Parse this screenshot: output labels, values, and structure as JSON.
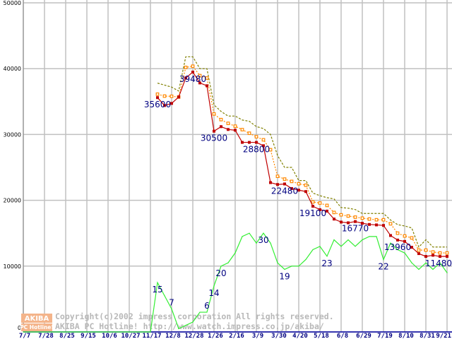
{
  "chart_data": {
    "type": "line",
    "title": "",
    "xlabel": "",
    "ylabel": "",
    "ylim": [
      0,
      50000
    ],
    "yticks": [
      "0",
      "10000",
      "20000",
      "30000",
      "40000",
      "50000"
    ],
    "xticks": [
      "7/7",
      "7/28",
      "8/25",
      "9/15",
      "10/6",
      "10/27",
      "11/17",
      "12/8",
      "12/28",
      "1/26",
      "2/16",
      "3/9",
      "3/30",
      "4/20",
      "5/18",
      "6/8",
      "6/29",
      "7/19",
      "8/10",
      "8/31",
      "9/21"
    ],
    "weeks_total": 61,
    "price_start_week": 19,
    "grid": true,
    "legend": "none",
    "series": [
      {
        "name": "max",
        "style": "dotted",
        "color": "#808000",
        "values": [
          37800,
          37500,
          37200,
          36600,
          41800,
          41800,
          40000,
          40000,
          34500,
          33500,
          32800,
          32800,
          32200,
          32000,
          31200,
          30900,
          30000,
          26800,
          25000,
          25000,
          23000,
          23000,
          21100,
          20700,
          20400,
          20200,
          18900,
          18800,
          18600,
          18000,
          18000,
          18000,
          18000,
          17000,
          16300,
          16100,
          15800,
          12900,
          14000,
          12900,
          12900,
          12900
        ]
      },
      {
        "name": "average",
        "style": "dotted-hollow-square",
        "color": "#ff8800",
        "values": [
          36120,
          35830,
          35800,
          35690,
          40190,
          40370,
          38940,
          38580,
          33120,
          32260,
          31690,
          31260,
          30730,
          30190,
          29650,
          29190,
          27680,
          23650,
          23220,
          22870,
          22510,
          22290,
          19750,
          19580,
          19220,
          18150,
          17790,
          17610,
          17440,
          17290,
          17150,
          17040,
          17040,
          16430,
          15000,
          14580,
          14290,
          12430,
          12430,
          12150,
          12000,
          12000
        ]
      },
      {
        "name": "min",
        "style": "solid-square",
        "color": "#c00000",
        "values": [
          35600,
          34400,
          34720,
          35690,
          38580,
          39480,
          37830,
          37400,
          30500,
          31190,
          30760,
          30650,
          28800,
          28800,
          28800,
          28290,
          22690,
          22400,
          22480,
          21790,
          21540,
          21330,
          19100,
          18580,
          18360,
          17150,
          16690,
          16580,
          16770,
          16510,
          16330,
          16260,
          16180,
          14650,
          13960,
          13750,
          12860,
          11900,
          11470,
          11650,
          11470,
          11480
        ],
        "labels": [
          {
            "i": 19,
            "text": "35600"
          },
          {
            "i": 24,
            "text": "39480"
          },
          {
            "i": 27,
            "text": "30500"
          },
          {
            "i": 33,
            "text": "28800"
          },
          {
            "i": 37,
            "text": "22480"
          },
          {
            "i": 41,
            "text": "19100"
          },
          {
            "i": 47,
            "text": "16770"
          },
          {
            "i": 53,
            "text": "13960"
          },
          {
            "i": 60,
            "text": "11480"
          }
        ]
      },
      {
        "name": "shop count",
        "style": "solid",
        "color": "#33ee33",
        "count_scale": 500,
        "start_week": 0,
        "values": [
          0,
          0,
          0,
          0,
          0,
          0,
          0,
          0,
          0,
          0,
          0,
          0,
          0,
          0,
          0,
          0,
          0,
          0,
          0,
          15,
          11,
          7,
          1,
          2,
          3,
          6,
          6,
          14,
          20,
          21,
          24,
          29,
          30,
          27,
          30,
          27,
          21,
          19,
          20,
          20,
          22,
          25,
          26,
          23,
          28,
          26,
          28,
          26,
          28,
          29,
          29,
          22,
          27,
          25,
          24,
          21,
          19,
          21,
          19,
          21,
          18
        ],
        "labels": [
          {
            "i": 19,
            "text": "15"
          },
          {
            "i": 21,
            "text": "7"
          },
          {
            "i": 26,
            "text": "6"
          },
          {
            "i": 27,
            "text": "14"
          },
          {
            "i": 28,
            "text": "20"
          },
          {
            "i": 34,
            "text": "30"
          },
          {
            "i": 37,
            "text": "19"
          },
          {
            "i": 43,
            "text": "23"
          },
          {
            "i": 51,
            "text": "22"
          }
        ]
      }
    ]
  },
  "watermark": {
    "logo_top": "AKIBA",
    "logo_bottom": "PC Hotline!",
    "line1": "Copyright(c)2002 impress corporation All rights reserved.",
    "line2": "AKIBA PC Hotline! http://www.watch.impress.co.jp/akiba/"
  }
}
